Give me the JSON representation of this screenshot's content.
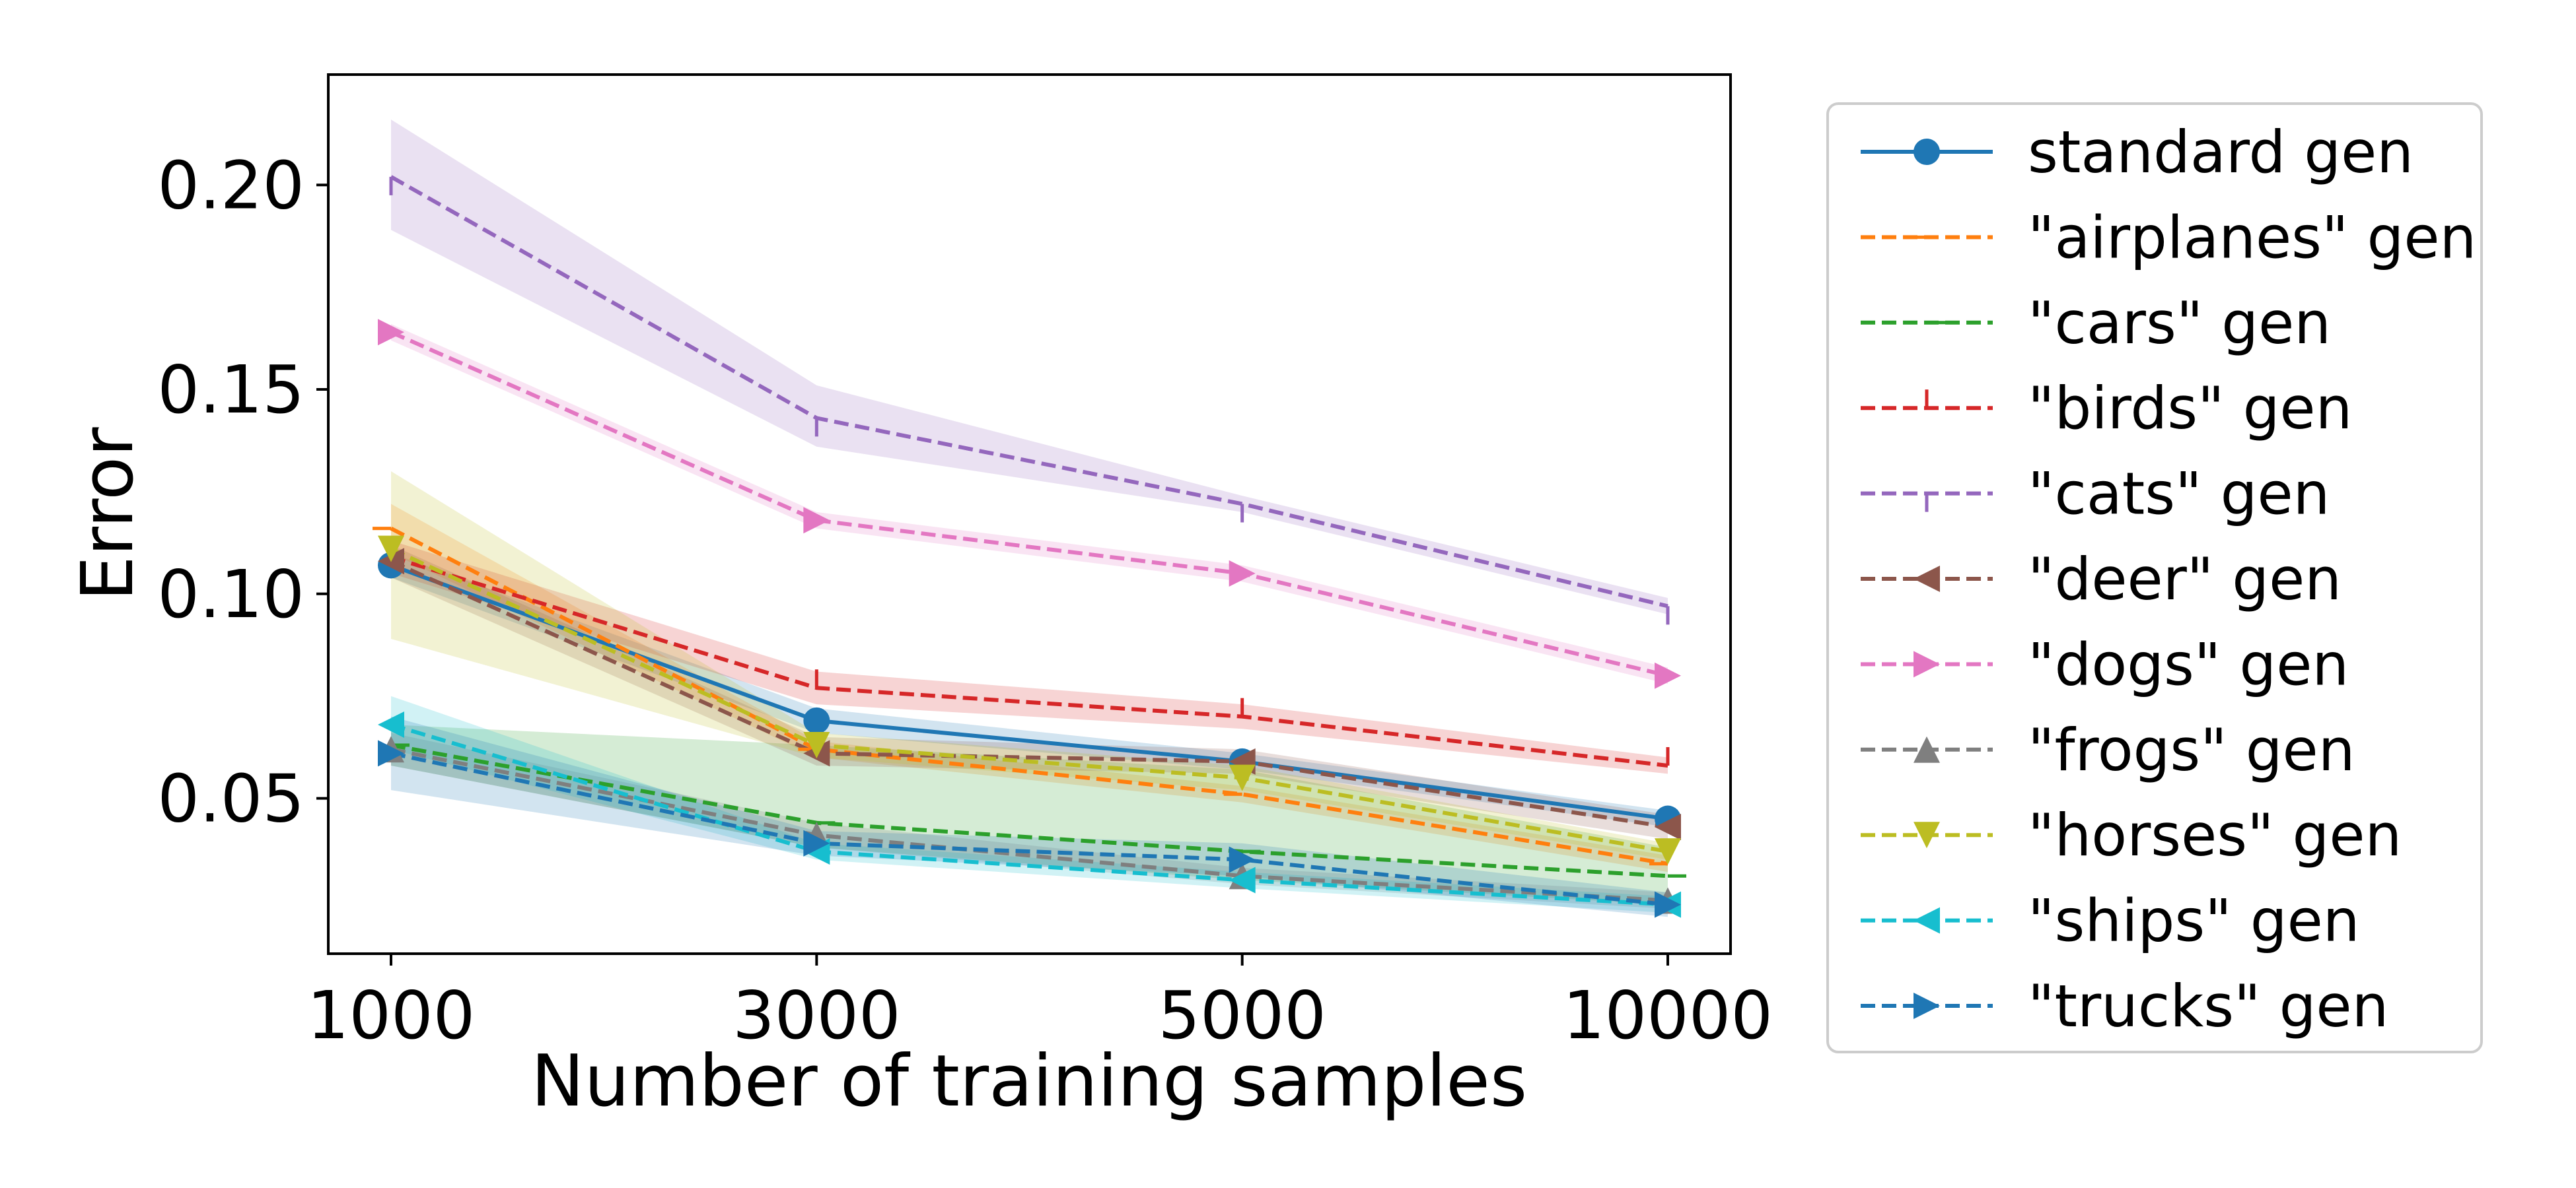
{
  "chart_data": {
    "type": "line",
    "title": "",
    "xlabel": "Number of training samples",
    "ylabel": "Error",
    "categories": [
      "1000",
      "3000",
      "5000",
      "10000"
    ],
    "ylim": [
      0.012,
      0.227
    ],
    "yticks": [
      0.05,
      0.1,
      0.15,
      0.2
    ],
    "ytick_labels": [
      "0.05",
      "0.10",
      "0.15",
      "0.20"
    ],
    "grid": false,
    "legend_position": "outside-right",
    "series": [
      {
        "name": "standard gen",
        "color": "#1f77b4",
        "dash": "solid",
        "marker": "circle",
        "values": [
          0.107,
          0.069,
          0.059,
          0.045
        ],
        "lower": [
          0.104,
          0.066,
          0.057,
          0.043
        ],
        "upper": [
          0.11,
          0.072,
          0.061,
          0.047
        ]
      },
      {
        "name": "\"airplanes\" gen",
        "color": "#ff7f0e",
        "dash": "dashed",
        "marker": "tick-left",
        "values": [
          0.116,
          0.062,
          0.051,
          0.034
        ],
        "lower": [
          0.11,
          0.06,
          0.049,
          0.032
        ],
        "upper": [
          0.122,
          0.064,
          0.053,
          0.036
        ]
      },
      {
        "name": "\"cars\" gen",
        "color": "#2ca02c",
        "dash": "dashed",
        "marker": "tick-right",
        "values": [
          0.063,
          0.044,
          0.037,
          0.031
        ],
        "lower": [
          0.058,
          0.038,
          0.03,
          0.024
        ],
        "upper": [
          0.068,
          0.063,
          0.057,
          0.038
        ]
      },
      {
        "name": "\"birds\" gen",
        "color": "#d62728",
        "dash": "dashed",
        "marker": "tick-up",
        "values": [
          0.109,
          0.077,
          0.07,
          0.058
        ],
        "lower": [
          0.105,
          0.073,
          0.067,
          0.056
        ],
        "upper": [
          0.113,
          0.081,
          0.073,
          0.06
        ]
      },
      {
        "name": "\"cats\" gen",
        "color": "#9467bd",
        "dash": "dashed",
        "marker": "tick-down",
        "values": [
          0.202,
          0.143,
          0.122,
          0.097
        ],
        "lower": [
          0.189,
          0.136,
          0.12,
          0.095
        ],
        "upper": [
          0.216,
          0.151,
          0.124,
          0.099
        ]
      },
      {
        "name": "\"deer\" gen",
        "color": "#8c564b",
        "dash": "dashed",
        "marker": "triangle-left",
        "values": [
          0.108,
          0.061,
          0.059,
          0.043
        ],
        "lower": [
          0.104,
          0.058,
          0.056,
          0.04
        ],
        "upper": [
          0.112,
          0.065,
          0.062,
          0.046
        ]
      },
      {
        "name": "\"dogs\" gen",
        "color": "#e377c2",
        "dash": "dashed",
        "marker": "triangle-right",
        "values": [
          0.164,
          0.118,
          0.105,
          0.08
        ],
        "lower": [
          0.162,
          0.116,
          0.103,
          0.078
        ],
        "upper": [
          0.166,
          0.12,
          0.107,
          0.082
        ]
      },
      {
        "name": "\"frogs\" gen",
        "color": "#7f7f7f",
        "dash": "dashed",
        "marker": "triangle-up",
        "values": [
          0.062,
          0.041,
          0.031,
          0.025
        ],
        "lower": [
          0.058,
          0.038,
          0.029,
          0.023
        ],
        "upper": [
          0.066,
          0.044,
          0.033,
          0.027
        ]
      },
      {
        "name": "\"horses\" gen",
        "color": "#bcbd22",
        "dash": "dashed",
        "marker": "triangle-down",
        "values": [
          0.111,
          0.063,
          0.055,
          0.037
        ],
        "lower": [
          0.089,
          0.06,
          0.052,
          0.035
        ],
        "upper": [
          0.13,
          0.066,
          0.058,
          0.039
        ]
      },
      {
        "name": "\"ships\" gen",
        "color": "#17becf",
        "dash": "dashed",
        "marker": "triangle-left",
        "values": [
          0.068,
          0.037,
          0.03,
          0.024
        ],
        "lower": [
          0.062,
          0.035,
          0.028,
          0.022
        ],
        "upper": [
          0.075,
          0.039,
          0.032,
          0.026
        ]
      },
      {
        "name": "\"trucks\" gen",
        "color": "#1f77b4",
        "dash": "dashed",
        "marker": "triangle-right",
        "values": [
          0.061,
          0.039,
          0.035,
          0.024
        ],
        "lower": [
          0.052,
          0.036,
          0.031,
          0.021
        ],
        "upper": [
          0.07,
          0.042,
          0.039,
          0.027
        ]
      }
    ]
  }
}
